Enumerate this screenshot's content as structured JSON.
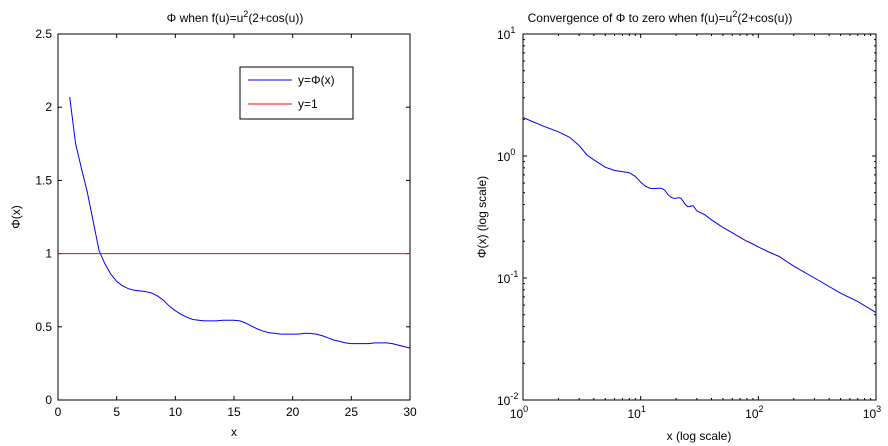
{
  "colors": {
    "series_blue": "#0000ff",
    "series_red": "#ff0000",
    "axis": "#000000",
    "background": "#ffffff"
  },
  "chart_data": [
    {
      "type": "line",
      "title_main": "Φ when f(u)=u",
      "title_sup": "2",
      "title_tail": "(2+cos(u))",
      "xlabel": "x",
      "ylabel": "Φ(x)",
      "xlim": [
        0,
        30
      ],
      "ylim": [
        0,
        2.5
      ],
      "xticks": [
        0,
        5,
        10,
        15,
        20,
        25,
        30
      ],
      "yticks": [
        0,
        0.5,
        1,
        1.5,
        2,
        2.5
      ],
      "xtick_labels": [
        "0",
        "5",
        "10",
        "15",
        "20",
        "25",
        "30"
      ],
      "ytick_labels": [
        "0",
        "0.5",
        "1",
        "1.5",
        "2",
        "2.5"
      ],
      "grid": false,
      "legend_position": "top-right",
      "series": [
        {
          "name": "y=Φ(x)",
          "color": "#0000ff",
          "x": [
            1,
            1.5,
            2,
            2.5,
            3,
            3.5,
            4,
            4.5,
            5,
            5.5,
            6,
            6.5,
            7,
            7.5,
            8,
            8.5,
            9,
            9.5,
            10,
            10.5,
            11,
            11.5,
            12,
            12.5,
            13,
            13.5,
            14,
            14.5,
            15,
            15.5,
            16,
            16.5,
            17,
            17.5,
            18,
            18.5,
            19,
            19.5,
            20,
            20.5,
            21,
            21.5,
            22,
            22.5,
            23,
            23.5,
            24,
            24.5,
            25,
            25.5,
            26,
            26.5,
            27,
            27.5,
            28,
            28.5,
            29,
            29.5,
            30
          ],
          "y": [
            2.07,
            1.75,
            1.58,
            1.42,
            1.22,
            1.02,
            0.93,
            0.86,
            0.81,
            0.78,
            0.76,
            0.75,
            0.745,
            0.74,
            0.73,
            0.71,
            0.68,
            0.64,
            0.61,
            0.585,
            0.565,
            0.55,
            0.545,
            0.54,
            0.54,
            0.54,
            0.545,
            0.545,
            0.545,
            0.54,
            0.525,
            0.505,
            0.485,
            0.47,
            0.46,
            0.455,
            0.45,
            0.45,
            0.45,
            0.45,
            0.455,
            0.455,
            0.45,
            0.44,
            0.425,
            0.41,
            0.4,
            0.39,
            0.385,
            0.385,
            0.385,
            0.385,
            0.39,
            0.39,
            0.39,
            0.385,
            0.375,
            0.365,
            0.355
          ]
        },
        {
          "name": "y=1",
          "color": "#ff0000",
          "x": [
            0,
            30
          ],
          "y": [
            1,
            1
          ]
        }
      ]
    },
    {
      "type": "line",
      "title_main": "Convergence of Φ to zero when f(u)=u",
      "title_sup": "2",
      "title_tail": "(2+cos(u))",
      "xlabel": "x (log scale)",
      "ylabel": "Φ(x) (log scale)",
      "xscale": "log",
      "yscale": "log",
      "xlim": [
        1,
        1000
      ],
      "ylim": [
        0.01,
        10
      ],
      "xtick_exponents": [
        0,
        1,
        2,
        3
      ],
      "ytick_exponents": [
        -2,
        -1,
        0,
        1
      ],
      "tick_base": "10",
      "grid": false,
      "series": [
        {
          "color": "#0000ff",
          "x": [
            1,
            1.5,
            2,
            2.5,
            3,
            3.5,
            4,
            5,
            6,
            7,
            8,
            9,
            10,
            11,
            12,
            13,
            14,
            15,
            16,
            17,
            18,
            19,
            20,
            21,
            22,
            23,
            24,
            25,
            26,
            27,
            28,
            30,
            35,
            40,
            50,
            60,
            70,
            80,
            90,
            100,
            120,
            150,
            200,
            300,
            500,
            700,
            1000
          ],
          "y": [
            2.07,
            1.75,
            1.58,
            1.42,
            1.22,
            1.02,
            0.93,
            0.81,
            0.76,
            0.745,
            0.73,
            0.68,
            0.61,
            0.565,
            0.545,
            0.54,
            0.545,
            0.545,
            0.525,
            0.485,
            0.46,
            0.45,
            0.45,
            0.455,
            0.45,
            0.425,
            0.4,
            0.385,
            0.385,
            0.39,
            0.39,
            0.355,
            0.33,
            0.3,
            0.26,
            0.235,
            0.215,
            0.2,
            0.19,
            0.18,
            0.165,
            0.15,
            0.125,
            0.1,
            0.075,
            0.064,
            0.052
          ]
        }
      ]
    }
  ]
}
